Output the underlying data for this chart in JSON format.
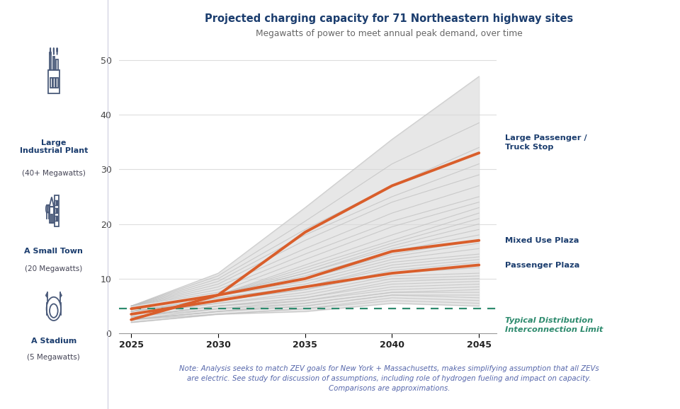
{
  "title": "Projected charging capacity for 71 Northeastern highway sites",
  "subtitle": "Megawatts of power to meet annual peak demand, over time",
  "note": "Note: Analysis seeks to match ZEV goals for New York + Massachusetts, makes simplifying assumption that all ZEVs\nare electric. See study for discussion of assumptions, including role of hydrogen fueling and impact on capacity.\nComparisons are approximations.",
  "x_ticks": [
    2025,
    2030,
    2035,
    2040,
    2045
  ],
  "ylim": [
    0,
    52
  ],
  "yticks": [
    0,
    10,
    20,
    30,
    40,
    50
  ],
  "title_color": "#1b3d6e",
  "subtitle_color": "#666666",
  "orange_color": "#d95e2b",
  "gray_line_color": "#c0c0c0",
  "dashed_color": "#2e8b6e",
  "background_left": "#e8eaf0",
  "background_chart": "#ffffff",
  "label_color": "#1b3d6e",
  "dashed_label_color": "#2e8b6e",
  "note_color": "#5566aa",
  "large_passenger_label": "Large Passenger /\nTruck Stop",
  "mixed_use_label": "Mixed Use Plaza",
  "passenger_plaza_label": "Passenger Plaza",
  "typical_dist_label": "Typical Distribution\nInterconnection Limit",
  "left_label1_bold": "Large\nIndustrial Plant",
  "left_label1_normal": "(40+ Megawatts)",
  "left_label2_bold": "A Small Town",
  "left_label2_normal": "(20 Megawatts)",
  "left_label3_bold": "A Stadium",
  "left_label3_normal": "(5 Megawatts)",
  "large_passenger_y2045": 33.0,
  "mixed_use_y2045": 17.0,
  "passenger_plaza_y2045": 12.5,
  "dashed_y": 4.5,
  "gray_lines_data": [
    [
      5.0,
      11.0,
      23.0,
      35.5,
      47.0
    ],
    [
      5.0,
      10.5,
      20.5,
      31.0,
      38.5
    ],
    [
      5.0,
      10.0,
      19.0,
      27.0,
      34.0
    ],
    [
      5.0,
      9.5,
      18.0,
      25.0,
      31.0
    ],
    [
      5.0,
      9.0,
      17.0,
      24.0,
      29.0
    ],
    [
      5.0,
      8.5,
      15.5,
      22.0,
      27.0
    ],
    [
      5.0,
      8.0,
      14.5,
      20.5,
      25.0
    ],
    [
      5.0,
      7.5,
      13.5,
      19.5,
      24.0
    ],
    [
      4.5,
      7.0,
      12.5,
      18.0,
      23.0
    ],
    [
      4.5,
      7.0,
      12.0,
      17.0,
      22.0
    ],
    [
      4.5,
      7.0,
      11.5,
      16.5,
      21.0
    ],
    [
      4.5,
      7.0,
      11.0,
      16.0,
      20.0
    ],
    [
      4.5,
      7.0,
      11.0,
      15.5,
      19.0
    ],
    [
      4.5,
      7.0,
      10.5,
      15.0,
      18.0
    ],
    [
      4.5,
      7.0,
      10.0,
      14.5,
      17.0
    ],
    [
      4.5,
      7.0,
      10.0,
      14.0,
      16.5
    ],
    [
      4.5,
      7.0,
      9.5,
      13.5,
      15.5
    ],
    [
      4.5,
      7.0,
      9.0,
      13.0,
      14.5
    ],
    [
      4.0,
      6.5,
      8.5,
      12.5,
      14.0
    ],
    [
      4.0,
      6.5,
      8.5,
      12.0,
      13.5
    ],
    [
      4.0,
      6.0,
      8.0,
      11.5,
      13.0
    ],
    [
      4.0,
      6.0,
      8.0,
      11.0,
      12.0
    ],
    [
      3.5,
      5.5,
      7.5,
      10.5,
      11.0
    ],
    [
      3.5,
      5.5,
      7.0,
      10.0,
      10.5
    ],
    [
      3.0,
      5.0,
      6.5,
      9.5,
      10.0
    ],
    [
      3.0,
      5.0,
      6.5,
      9.0,
      9.5
    ],
    [
      3.0,
      5.0,
      6.0,
      8.5,
      9.0
    ],
    [
      3.0,
      4.5,
      6.0,
      8.0,
      8.5
    ],
    [
      2.5,
      4.5,
      5.5,
      7.5,
      8.0
    ],
    [
      2.5,
      4.0,
      5.5,
      7.5,
      7.5
    ],
    [
      2.5,
      4.0,
      5.0,
      7.0,
      7.0
    ],
    [
      2.5,
      4.0,
      5.0,
      7.0,
      6.5
    ],
    [
      2.5,
      3.5,
      4.5,
      6.5,
      6.0
    ],
    [
      2.0,
      3.5,
      4.5,
      6.0,
      5.5
    ],
    [
      2.0,
      3.5,
      4.0,
      5.5,
      5.0
    ]
  ],
  "large_passenger_data": [
    2.5,
    7.0,
    18.5,
    27.0,
    33.0
  ],
  "mixed_use_data": [
    4.5,
    7.0,
    10.0,
    15.0,
    17.0
  ],
  "passenger_plaza_data": [
    3.5,
    6.0,
    8.5,
    11.0,
    12.5
  ]
}
